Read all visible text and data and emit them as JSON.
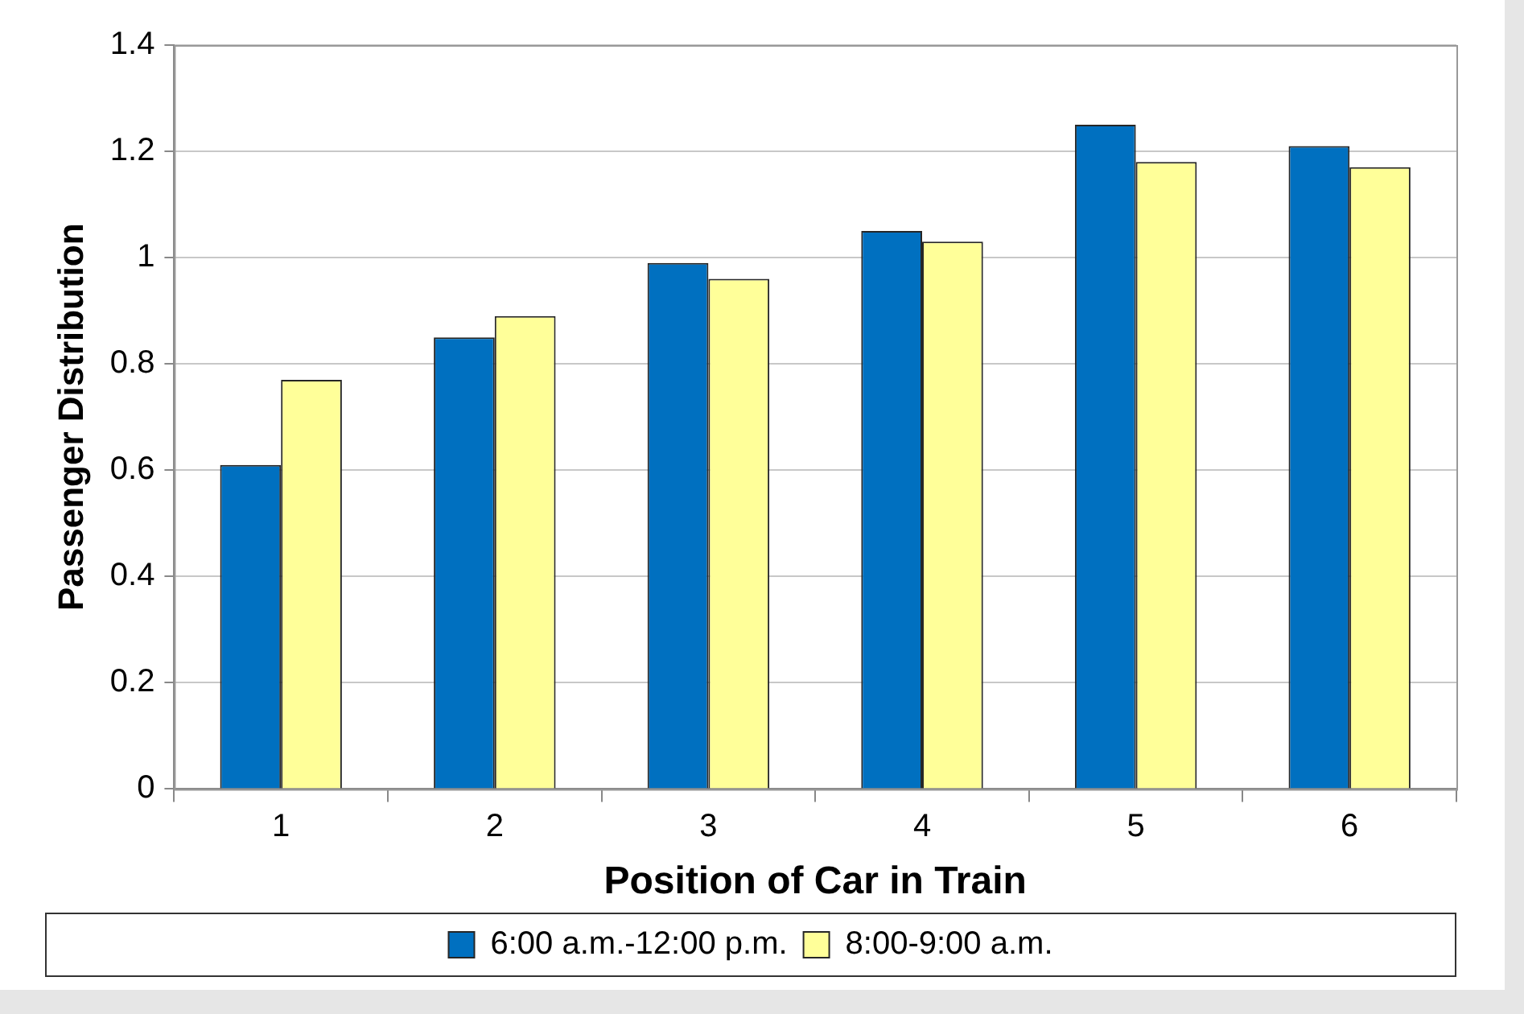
{
  "chart_data": {
    "type": "bar",
    "xlabel": "Position of Car in Train",
    "ylabel": "Passenger Distribution",
    "categories": [
      "1",
      "2",
      "3",
      "4",
      "5",
      "6"
    ],
    "series": [
      {
        "name": "6:00 a.m.-12:00 p.m.",
        "color": "#0070c0",
        "values": [
          0.61,
          0.85,
          0.99,
          1.05,
          1.25,
          1.21
        ]
      },
      {
        "name": "8:00-9:00 a.m.",
        "color": "#ffff99",
        "values": [
          0.77,
          0.89,
          0.96,
          1.03,
          1.18,
          1.17
        ]
      }
    ],
    "ylim": [
      0,
      1.4
    ],
    "yticks": [
      0,
      0.2,
      0.4,
      0.6,
      0.8,
      1,
      1.2,
      1.4
    ],
    "grid": "y",
    "legend": "bottom"
  }
}
